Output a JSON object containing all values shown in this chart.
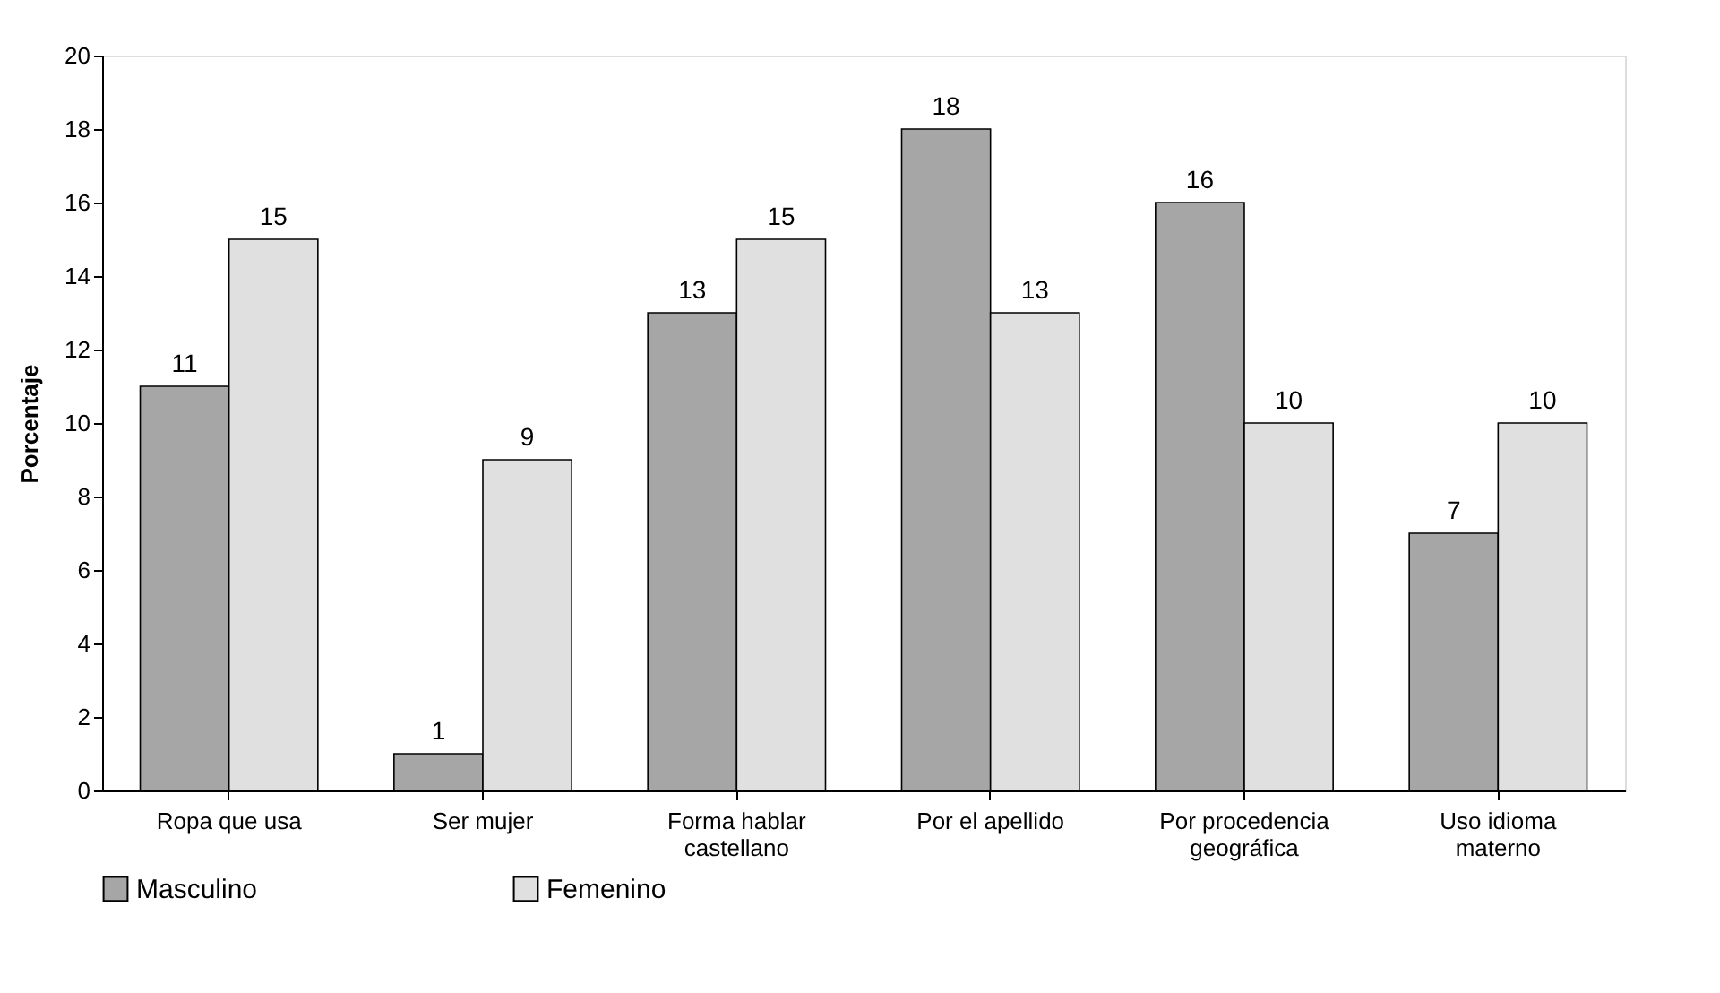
{
  "chart_data": {
    "type": "bar",
    "ylabel": "Porcentaje",
    "categories": [
      "Ropa que usa",
      "Ser mujer",
      "Forma hablar\ncastellano",
      "Por el apellido",
      "Por procedencia\ngeográfica",
      "Uso idioma\nmaterno"
    ],
    "series": [
      {
        "name": "Masculino",
        "color": "#a6a6a6",
        "values": [
          11,
          1,
          13,
          18,
          16,
          7
        ]
      },
      {
        "name": "Femenino",
        "color": "#e0e0e0",
        "values": [
          15,
          9,
          15,
          13,
          10,
          10
        ]
      }
    ],
    "ylim": [
      0,
      20
    ],
    "yticks": [
      0,
      2,
      4,
      6,
      8,
      10,
      12,
      14,
      16,
      18,
      20
    ],
    "data_labels": true,
    "legend": "bottom",
    "grid": false
  }
}
